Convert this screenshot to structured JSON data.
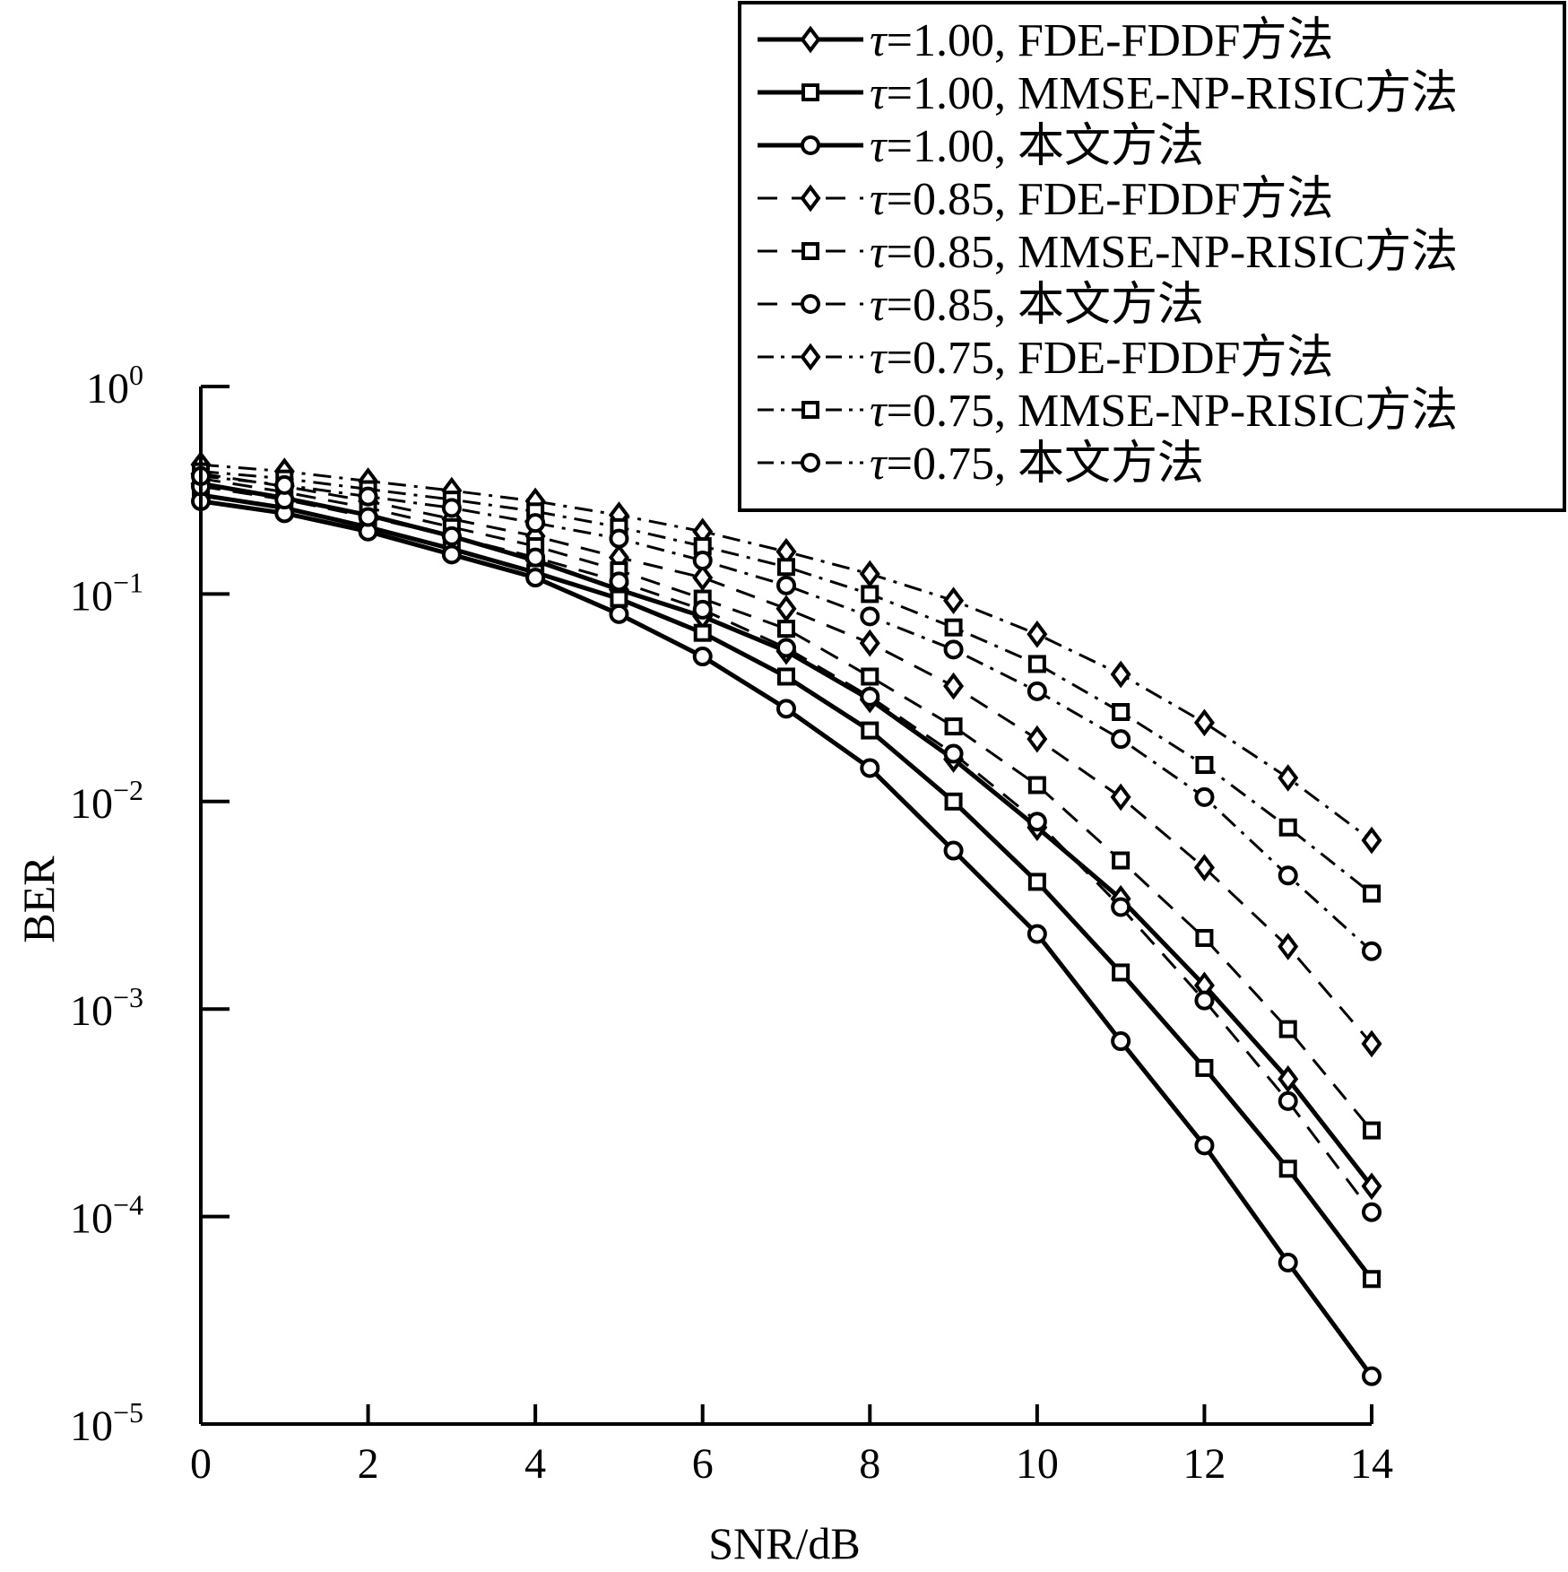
{
  "chart_data": {
    "type": "line",
    "title": "",
    "xlabel": "SNR/dB",
    "ylabel": "BER",
    "yscale": "log",
    "xlim": [
      0,
      14
    ],
    "ylim": [
      1e-05,
      1
    ],
    "x_ticks": [
      "0",
      "2",
      "4",
      "6",
      "8",
      "10",
      "12",
      "14"
    ],
    "y_ticks": [
      {
        "base": "10",
        "exp": "0"
      },
      {
        "base": "10",
        "exp": "−1"
      },
      {
        "base": "10",
        "exp": "−2"
      },
      {
        "base": "10",
        "exp": "−3"
      },
      {
        "base": "10",
        "exp": "−4"
      },
      {
        "base": "10",
        "exp": "−5"
      }
    ],
    "grid": false,
    "legend_position": "top-right",
    "x": [
      0,
      1,
      2,
      3,
      4,
      5,
      6,
      7,
      8,
      9,
      10,
      11,
      12,
      13,
      14
    ],
    "series": [
      {
        "name": "τ=1.00, FDE-FDDF方法",
        "tau": "τ",
        "rest": "=1.00, FDE-FDDF方法",
        "line": "solid",
        "marker": "diamond",
        "values": [
          0.34,
          0.29,
          0.24,
          0.19,
          0.145,
          0.105,
          0.078,
          0.053,
          0.031,
          0.016,
          0.0075,
          0.0034,
          0.0013,
          0.00046,
          0.00014
        ]
      },
      {
        "name": "τ=1.00, MMSE-NP-RISIC方法",
        "tau": "τ",
        "rest": "=1.00, MMSE-NP-RISIC方法",
        "line": "solid",
        "marker": "square",
        "values": [
          0.3,
          0.26,
          0.21,
          0.165,
          0.127,
          0.095,
          0.065,
          0.04,
          0.022,
          0.01,
          0.0041,
          0.0015,
          0.00052,
          0.00017,
          5e-05
        ]
      },
      {
        "name": "τ=1.00, 本文方法",
        "tau": "τ",
        "rest": "=1.00, 本文方法",
        "line": "solid",
        "marker": "circle",
        "values": [
          0.28,
          0.245,
          0.2,
          0.155,
          0.12,
          0.08,
          0.05,
          0.028,
          0.0145,
          0.0058,
          0.0023,
          0.0007,
          0.00022,
          6e-05,
          1.7e-05
        ]
      },
      {
        "name": "τ=0.85, FDE-FDDF方法",
        "tau": "τ",
        "rest": "=0.85, FDE-FDDF方法",
        "line": "dash",
        "marker": "diamond",
        "values": [
          0.38,
          0.33,
          0.28,
          0.23,
          0.19,
          0.15,
          0.12,
          0.085,
          0.058,
          0.036,
          0.02,
          0.0105,
          0.0048,
          0.002,
          0.00068
        ]
      },
      {
        "name": "τ=0.85, MMSE-NP-RISIC方法",
        "tau": "τ",
        "rest": "=0.85, MMSE-NP-RISIC方法",
        "line": "dash",
        "marker": "square",
        "values": [
          0.36,
          0.31,
          0.26,
          0.21,
          0.17,
          0.13,
          0.095,
          0.068,
          0.04,
          0.023,
          0.012,
          0.0052,
          0.0022,
          0.0008,
          0.00026
        ]
      },
      {
        "name": "τ=0.85, 本文方法",
        "tau": "τ",
        "rest": "=0.85, 本文方法",
        "line": "dash",
        "marker": "circle",
        "values": [
          0.33,
          0.285,
          0.235,
          0.19,
          0.15,
          0.115,
          0.084,
          0.055,
          0.032,
          0.017,
          0.008,
          0.0031,
          0.0011,
          0.00036,
          0.000105
        ]
      },
      {
        "name": "τ=0.75, FDE-FDDF方法",
        "tau": "τ",
        "rest": "=0.75, FDE-FDDF方法",
        "line": "dashdot",
        "marker": "diamond",
        "values": [
          0.42,
          0.39,
          0.35,
          0.315,
          0.28,
          0.24,
          0.2,
          0.16,
          0.125,
          0.093,
          0.064,
          0.041,
          0.024,
          0.013,
          0.0065
        ]
      },
      {
        "name": "τ=0.75, MMSE-NP-RISIC方法",
        "tau": "τ",
        "rest": "=0.75, MMSE-NP-RISIC方法",
        "line": "dashdot",
        "marker": "square",
        "values": [
          0.39,
          0.36,
          0.32,
          0.285,
          0.25,
          0.21,
          0.17,
          0.135,
          0.1,
          0.069,
          0.046,
          0.027,
          0.015,
          0.0075,
          0.0036
        ]
      },
      {
        "name": "τ=0.75, 本文方法",
        "tau": "τ",
        "rest": "=0.75, 本文方法",
        "line": "dashdot",
        "marker": "circle",
        "values": [
          0.37,
          0.335,
          0.295,
          0.26,
          0.22,
          0.185,
          0.145,
          0.11,
          0.078,
          0.054,
          0.034,
          0.02,
          0.0105,
          0.0044,
          0.0019
        ]
      }
    ]
  }
}
